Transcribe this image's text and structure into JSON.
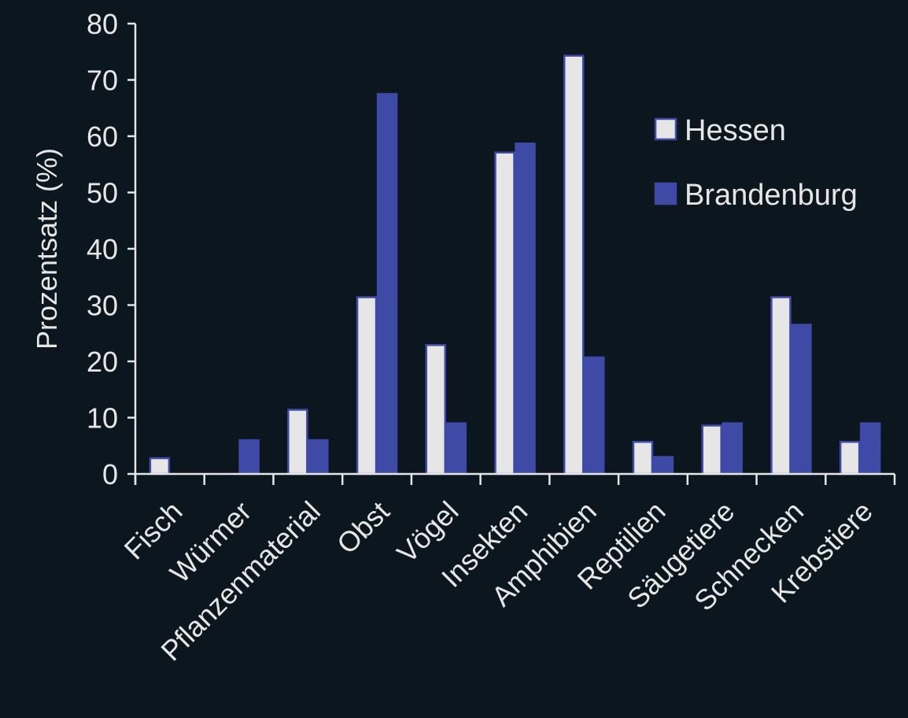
{
  "chart_data": {
    "type": "bar",
    "ylabel": "Prozentsatz (%)",
    "ylim": [
      0,
      80
    ],
    "yticks": [
      0,
      10,
      20,
      30,
      40,
      50,
      60,
      70,
      80
    ],
    "categories": [
      "Fisch",
      "Würmer",
      "Pflanzenmaterial",
      "Obst",
      "Vögel",
      "Insekten",
      "Amphibien",
      "Reptilien",
      "Säugetiere",
      "Schnecken",
      "Krebstiere"
    ],
    "series": [
      {
        "name": "Hessen",
        "color": "#e6e6e6",
        "border": "#3e4aa6",
        "values": [
          2.8,
          0,
          11.4,
          31.4,
          22.9,
          57.1,
          74.3,
          5.7,
          8.6,
          31.4,
          5.7
        ]
      },
      {
        "name": "Brandenburg",
        "color": "#3e4aa6",
        "border": "#3e4aa6",
        "values": [
          0,
          6.0,
          6.0,
          67.5,
          9.0,
          58.7,
          20.7,
          3.0,
          9.0,
          26.5,
          9.0
        ]
      }
    ],
    "legend_position": "top-right",
    "grid": false
  }
}
